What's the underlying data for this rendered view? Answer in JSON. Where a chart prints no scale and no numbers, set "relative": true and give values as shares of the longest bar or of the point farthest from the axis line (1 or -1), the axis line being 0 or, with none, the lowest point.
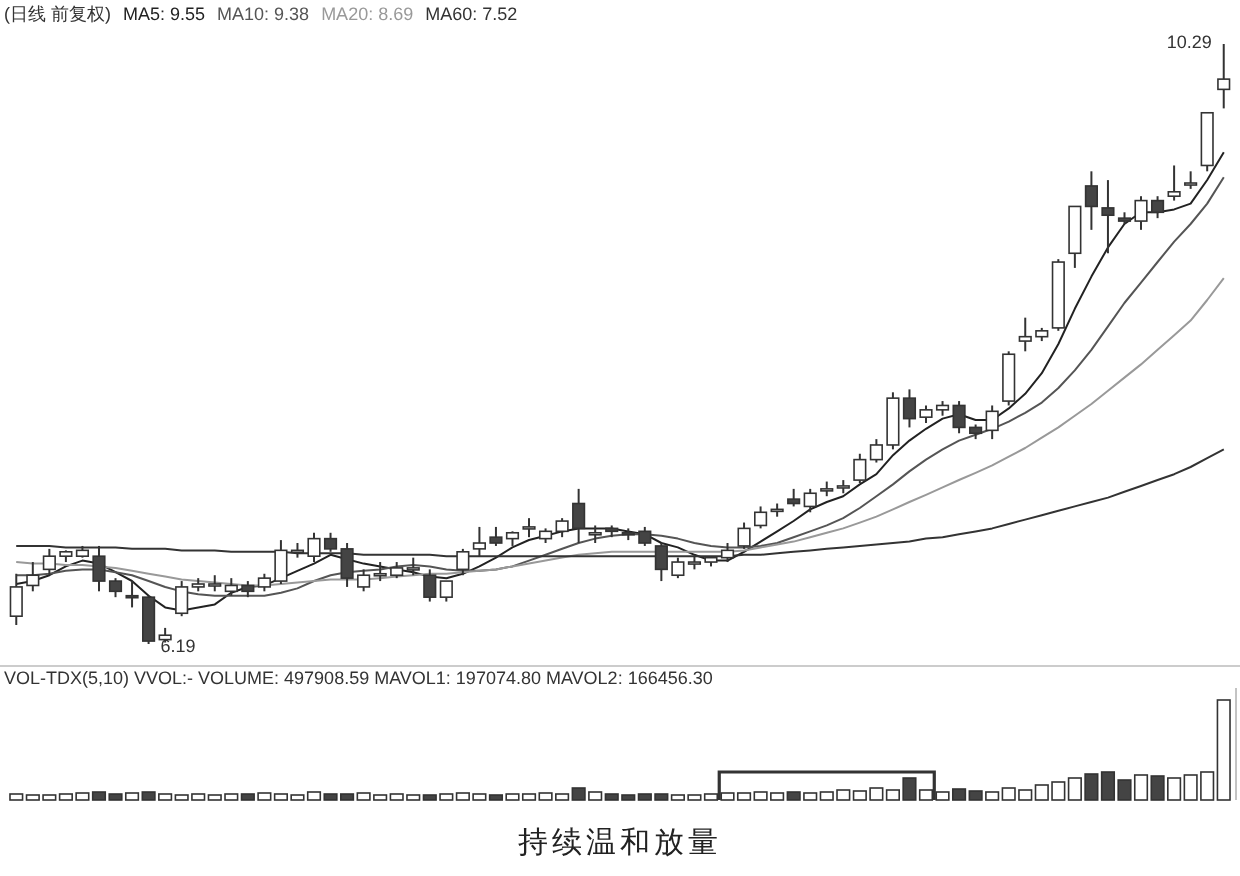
{
  "chart_data": [
    {
      "type": "candlestick",
      "title": "(日线 前复权)",
      "legend": "top left",
      "categories": [
        null,
        null,
        null,
        null,
        null,
        null,
        null,
        null,
        null,
        null,
        null,
        null,
        null,
        null,
        null,
        null,
        null,
        null,
        null,
        null,
        null,
        null,
        null,
        null,
        null,
        null,
        null,
        null,
        null,
        null,
        null,
        null,
        null,
        null,
        null,
        null,
        null,
        null,
        null,
        null,
        null,
        null,
        null,
        null,
        null,
        null,
        null,
        null,
        null,
        null,
        null,
        null,
        null,
        null,
        null,
        null,
        null,
        null,
        null,
        null,
        null,
        null,
        null,
        null,
        null,
        null,
        null,
        null,
        null,
        null,
        null,
        null,
        null,
        null
      ],
      "ohlc": [
        [
          6.38,
          6.67,
          6.32,
          6.58
        ],
        [
          6.59,
          6.75,
          6.55,
          6.66
        ],
        [
          6.7,
          6.84,
          6.66,
          6.79
        ],
        [
          6.79,
          6.83,
          6.75,
          6.82
        ],
        [
          6.79,
          6.86,
          6.78,
          6.83
        ],
        [
          6.79,
          6.86,
          6.55,
          6.62
        ],
        [
          6.62,
          6.64,
          6.51,
          6.55
        ],
        [
          6.52,
          6.62,
          6.44,
          6.51
        ],
        [
          6.51,
          6.52,
          6.19,
          6.21
        ],
        [
          6.22,
          6.3,
          6.2,
          6.25
        ],
        [
          6.4,
          6.62,
          6.38,
          6.58
        ],
        [
          6.58,
          6.64,
          6.55,
          6.6
        ],
        [
          6.6,
          6.66,
          6.55,
          6.6
        ],
        [
          6.55,
          6.64,
          6.52,
          6.59
        ],
        [
          6.59,
          6.62,
          6.51,
          6.55
        ],
        [
          6.58,
          6.67,
          6.55,
          6.64
        ],
        [
          6.62,
          6.9,
          6.6,
          6.83
        ],
        [
          6.83,
          6.88,
          6.78,
          6.83
        ],
        [
          6.79,
          6.95,
          6.75,
          6.91
        ],
        [
          6.91,
          6.95,
          6.82,
          6.84
        ],
        [
          6.84,
          6.88,
          6.58,
          6.64
        ],
        [
          6.58,
          6.7,
          6.55,
          6.66
        ],
        [
          6.67,
          6.75,
          6.62,
          6.67
        ],
        [
          6.66,
          6.75,
          6.64,
          6.71
        ],
        [
          6.71,
          6.78,
          6.66,
          6.71
        ],
        [
          6.66,
          6.7,
          6.48,
          6.51
        ],
        [
          6.51,
          6.62,
          6.48,
          6.62
        ],
        [
          6.7,
          6.84,
          6.66,
          6.82
        ],
        [
          6.84,
          6.99,
          6.79,
          6.88
        ],
        [
          6.92,
          6.99,
          6.86,
          6.88
        ],
        [
          6.91,
          6.96,
          6.86,
          6.95
        ],
        [
          6.99,
          7.05,
          6.92,
          6.99
        ],
        [
          6.91,
          6.98,
          6.88,
          6.96
        ],
        [
          6.96,
          7.05,
          6.92,
          7.03
        ],
        [
          7.15,
          7.25,
          6.88,
          6.98
        ],
        [
          6.95,
          7.0,
          6.88,
          6.95
        ],
        [
          6.98,
          7.0,
          6.92,
          6.96
        ],
        [
          6.95,
          6.98,
          6.9,
          6.94
        ],
        [
          6.96,
          6.99,
          6.86,
          6.88
        ],
        [
          6.86,
          6.88,
          6.62,
          6.7
        ],
        [
          6.66,
          6.78,
          6.64,
          6.75
        ],
        [
          6.75,
          6.79,
          6.7,
          6.75
        ],
        [
          6.75,
          6.79,
          6.72,
          6.78
        ],
        [
          6.78,
          6.88,
          6.75,
          6.83
        ],
        [
          6.86,
          7.02,
          6.84,
          6.98
        ],
        [
          7.0,
          7.13,
          6.98,
          7.09
        ],
        [
          7.11,
          7.15,
          7.06,
          7.11
        ],
        [
          7.18,
          7.25,
          7.13,
          7.15
        ],
        [
          7.13,
          7.25,
          7.09,
          7.22
        ],
        [
          7.25,
          7.3,
          7.2,
          7.25
        ],
        [
          7.27,
          7.31,
          7.22,
          7.27
        ],
        [
          7.31,
          7.49,
          7.29,
          7.45
        ],
        [
          7.45,
          7.59,
          7.43,
          7.55
        ],
        [
          7.55,
          7.91,
          7.52,
          7.87
        ],
        [
          7.87,
          7.93,
          7.67,
          7.73
        ],
        [
          7.74,
          7.82,
          7.7,
          7.79
        ],
        [
          7.79,
          7.85,
          7.75,
          7.82
        ],
        [
          7.82,
          7.85,
          7.63,
          7.67
        ],
        [
          7.67,
          7.69,
          7.59,
          7.63
        ],
        [
          7.65,
          7.82,
          7.59,
          7.78
        ],
        [
          7.85,
          8.19,
          7.82,
          8.17
        ],
        [
          8.26,
          8.42,
          8.19,
          8.29
        ],
        [
          8.29,
          8.35,
          8.26,
          8.33
        ],
        [
          8.35,
          8.82,
          8.33,
          8.8
        ],
        [
          8.86,
          9.18,
          8.76,
          9.18
        ],
        [
          9.32,
          9.42,
          9.02,
          9.18
        ],
        [
          9.17,
          9.36,
          8.86,
          9.12
        ],
        [
          9.1,
          9.14,
          9.06,
          9.08
        ],
        [
          9.08,
          9.25,
          9.02,
          9.22
        ],
        [
          9.22,
          9.25,
          9.1,
          9.14
        ],
        [
          9.25,
          9.46,
          9.22,
          9.28
        ],
        [
          9.34,
          9.42,
          9.3,
          9.34
        ],
        [
          9.46,
          9.82,
          9.42,
          9.82
        ],
        [
          9.98,
          10.29,
          9.85,
          10.05
        ]
      ],
      "series": [
        {
          "name": "MA5: 9.55",
          "type": "line",
          "color": "#222222",
          "values": [
            6.6,
            6.62,
            6.66,
            6.72,
            6.76,
            6.74,
            6.68,
            6.62,
            6.52,
            6.44,
            6.42,
            6.44,
            6.46,
            6.54,
            6.58,
            6.59,
            6.64,
            6.69,
            6.74,
            6.8,
            6.77,
            6.74,
            6.72,
            6.7,
            6.68,
            6.65,
            6.64,
            6.67,
            6.72,
            6.78,
            6.85,
            6.9,
            6.93,
            6.96,
            6.98,
            6.98,
            6.98,
            6.96,
            6.94,
            6.88,
            6.85,
            6.8,
            6.76,
            6.76,
            6.82,
            6.89,
            6.96,
            7.03,
            7.11,
            7.16,
            7.2,
            7.28,
            7.35,
            7.48,
            7.58,
            7.66,
            7.73,
            7.76,
            7.72,
            7.72,
            7.8,
            7.9,
            8.04,
            8.24,
            8.48,
            8.7,
            8.9,
            9.06,
            9.14,
            9.14,
            9.16,
            9.2,
            9.36,
            9.55
          ]
        },
        {
          "name": "MA10: 9.38",
          "type": "line",
          "color": "#555555",
          "values": [
            6.66,
            6.66,
            6.67,
            6.69,
            6.7,
            6.7,
            6.68,
            6.66,
            6.62,
            6.58,
            6.55,
            6.53,
            6.52,
            6.52,
            6.52,
            6.52,
            6.54,
            6.57,
            6.62,
            6.66,
            6.68,
            6.69,
            6.7,
            6.72,
            6.73,
            6.72,
            6.7,
            6.69,
            6.69,
            6.7,
            6.72,
            6.76,
            6.8,
            6.84,
            6.88,
            6.91,
            6.93,
            6.94,
            6.94,
            6.93,
            6.91,
            6.88,
            6.86,
            6.85,
            6.85,
            6.86,
            6.88,
            6.92,
            6.96,
            7.0,
            7.05,
            7.12,
            7.2,
            7.28,
            7.37,
            7.45,
            7.52,
            7.58,
            7.62,
            7.66,
            7.71,
            7.77,
            7.84,
            7.94,
            8.06,
            8.2,
            8.36,
            8.52,
            8.66,
            8.8,
            8.94,
            9.06,
            9.2,
            9.38
          ]
        },
        {
          "name": "MA20: 8.69",
          "type": "line",
          "color": "#999999",
          "values": [
            6.75,
            6.74,
            6.74,
            6.73,
            6.73,
            6.72,
            6.71,
            6.69,
            6.67,
            6.65,
            6.63,
            6.62,
            6.61,
            6.6,
            6.59,
            6.59,
            6.6,
            6.61,
            6.62,
            6.63,
            6.63,
            6.63,
            6.64,
            6.65,
            6.66,
            6.67,
            6.67,
            6.68,
            6.69,
            6.7,
            6.72,
            6.74,
            6.76,
            6.78,
            6.8,
            6.81,
            6.82,
            6.82,
            6.82,
            6.82,
            6.82,
            6.82,
            6.82,
            6.82,
            6.83,
            6.85,
            6.87,
            6.89,
            6.92,
            6.95,
            6.98,
            7.02,
            7.06,
            7.11,
            7.16,
            7.21,
            7.26,
            7.31,
            7.36,
            7.41,
            7.47,
            7.53,
            7.6,
            7.67,
            7.75,
            7.83,
            7.92,
            8.01,
            8.1,
            8.2,
            8.3,
            8.4,
            8.54,
            8.69
          ]
        },
        {
          "name": "MA60: 7.52",
          "type": "line",
          "color": "#333333",
          "values": [
            6.86,
            6.86,
            6.86,
            6.85,
            6.85,
            6.85,
            6.85,
            6.84,
            6.84,
            6.84,
            6.83,
            6.83,
            6.83,
            6.82,
            6.82,
            6.82,
            6.82,
            6.81,
            6.81,
            6.81,
            6.81,
            6.8,
            6.8,
            6.8,
            6.8,
            6.8,
            6.79,
            6.79,
            6.79,
            6.79,
            6.79,
            6.79,
            6.79,
            6.79,
            6.79,
            6.79,
            6.79,
            6.79,
            6.79,
            6.79,
            6.79,
            6.79,
            6.79,
            6.79,
            6.8,
            6.8,
            6.81,
            6.82,
            6.83,
            6.84,
            6.85,
            6.86,
            6.87,
            6.88,
            6.89,
            6.91,
            6.92,
            6.94,
            6.96,
            6.98,
            7.01,
            7.04,
            7.07,
            7.1,
            7.13,
            7.16,
            7.19,
            7.23,
            7.27,
            7.31,
            7.35,
            7.4,
            7.46,
            7.52
          ]
        }
      ],
      "annotations": [
        "10.29",
        "6.19"
      ]
    },
    {
      "type": "bar",
      "relative": true,
      "title": "VOL-TDX(5,10) VVOL:-  VOLUME: 497908.59 MAVOL1: 197074.80 MAVOL2: 166456.30",
      "categories": [
        null,
        null,
        null,
        null,
        null,
        null,
        null,
        null,
        null,
        null,
        null,
        null,
        null,
        null,
        null,
        null,
        null,
        null,
        null,
        null,
        null,
        null,
        null,
        null,
        null,
        null,
        null,
        null,
        null,
        null,
        null,
        null,
        null,
        null,
        null,
        null,
        null,
        null,
        null,
        null,
        null,
        null,
        null,
        null,
        null,
        null,
        null,
        null,
        null,
        null,
        null,
        null,
        null,
        null,
        null,
        null,
        null,
        null,
        null,
        null,
        null,
        null,
        null,
        null,
        null,
        null,
        null,
        null,
        null,
        null,
        null,
        null,
        null,
        null
      ],
      "values": [
        0.06,
        0.05,
        0.05,
        0.06,
        0.07,
        0.08,
        0.06,
        0.07,
        0.08,
        0.06,
        0.05,
        0.06,
        0.05,
        0.06,
        0.06,
        0.07,
        0.06,
        0.05,
        0.08,
        0.06,
        0.06,
        0.07,
        0.05,
        0.06,
        0.05,
        0.05,
        0.06,
        0.07,
        0.06,
        0.05,
        0.06,
        0.06,
        0.07,
        0.06,
        0.12,
        0.08,
        0.06,
        0.05,
        0.06,
        0.06,
        0.05,
        0.05,
        0.06,
        0.07,
        0.07,
        0.08,
        0.07,
        0.08,
        0.07,
        0.08,
        0.1,
        0.09,
        0.12,
        0.1,
        0.22,
        0.1,
        0.08,
        0.11,
        0.09,
        0.08,
        0.12,
        0.1,
        0.15,
        0.18,
        0.22,
        0.26,
        0.28,
        0.2,
        0.25,
        0.24,
        0.22,
        0.25,
        0.28,
        1.0
      ],
      "colors": [
        "#ffffff",
        "#ffffff",
        "#ffffff",
        "#ffffff",
        "#ffffff",
        "#444444",
        "#444444",
        "#ffffff",
        "#444444",
        "#ffffff",
        "#ffffff",
        "#ffffff",
        "#ffffff",
        "#ffffff",
        "#444444",
        "#ffffff",
        "#ffffff",
        "#ffffff",
        "#ffffff",
        "#444444",
        "#444444",
        "#ffffff",
        "#ffffff",
        "#ffffff",
        "#ffffff",
        "#444444",
        "#ffffff",
        "#ffffff",
        "#ffffff",
        "#444444",
        "#ffffff",
        "#ffffff",
        "#ffffff",
        "#ffffff",
        "#444444",
        "#ffffff",
        "#444444",
        "#444444",
        "#444444",
        "#444444",
        "#ffffff",
        "#ffffff",
        "#ffffff",
        "#ffffff",
        "#ffffff",
        "#ffffff",
        "#ffffff",
        "#444444",
        "#ffffff",
        "#ffffff",
        "#ffffff",
        "#ffffff",
        "#ffffff",
        "#ffffff",
        "#444444",
        "#ffffff",
        "#ffffff",
        "#444444",
        "#444444",
        "#ffffff",
        "#ffffff",
        "#ffffff",
        "#ffffff",
        "#ffffff",
        "#ffffff",
        "#444444",
        "#444444",
        "#444444",
        "#ffffff",
        "#444444",
        "#ffffff",
        "#ffffff",
        "#ffffff",
        "#ffffff"
      ],
      "annotations": [
        "持续温和放量"
      ]
    }
  ]
}
